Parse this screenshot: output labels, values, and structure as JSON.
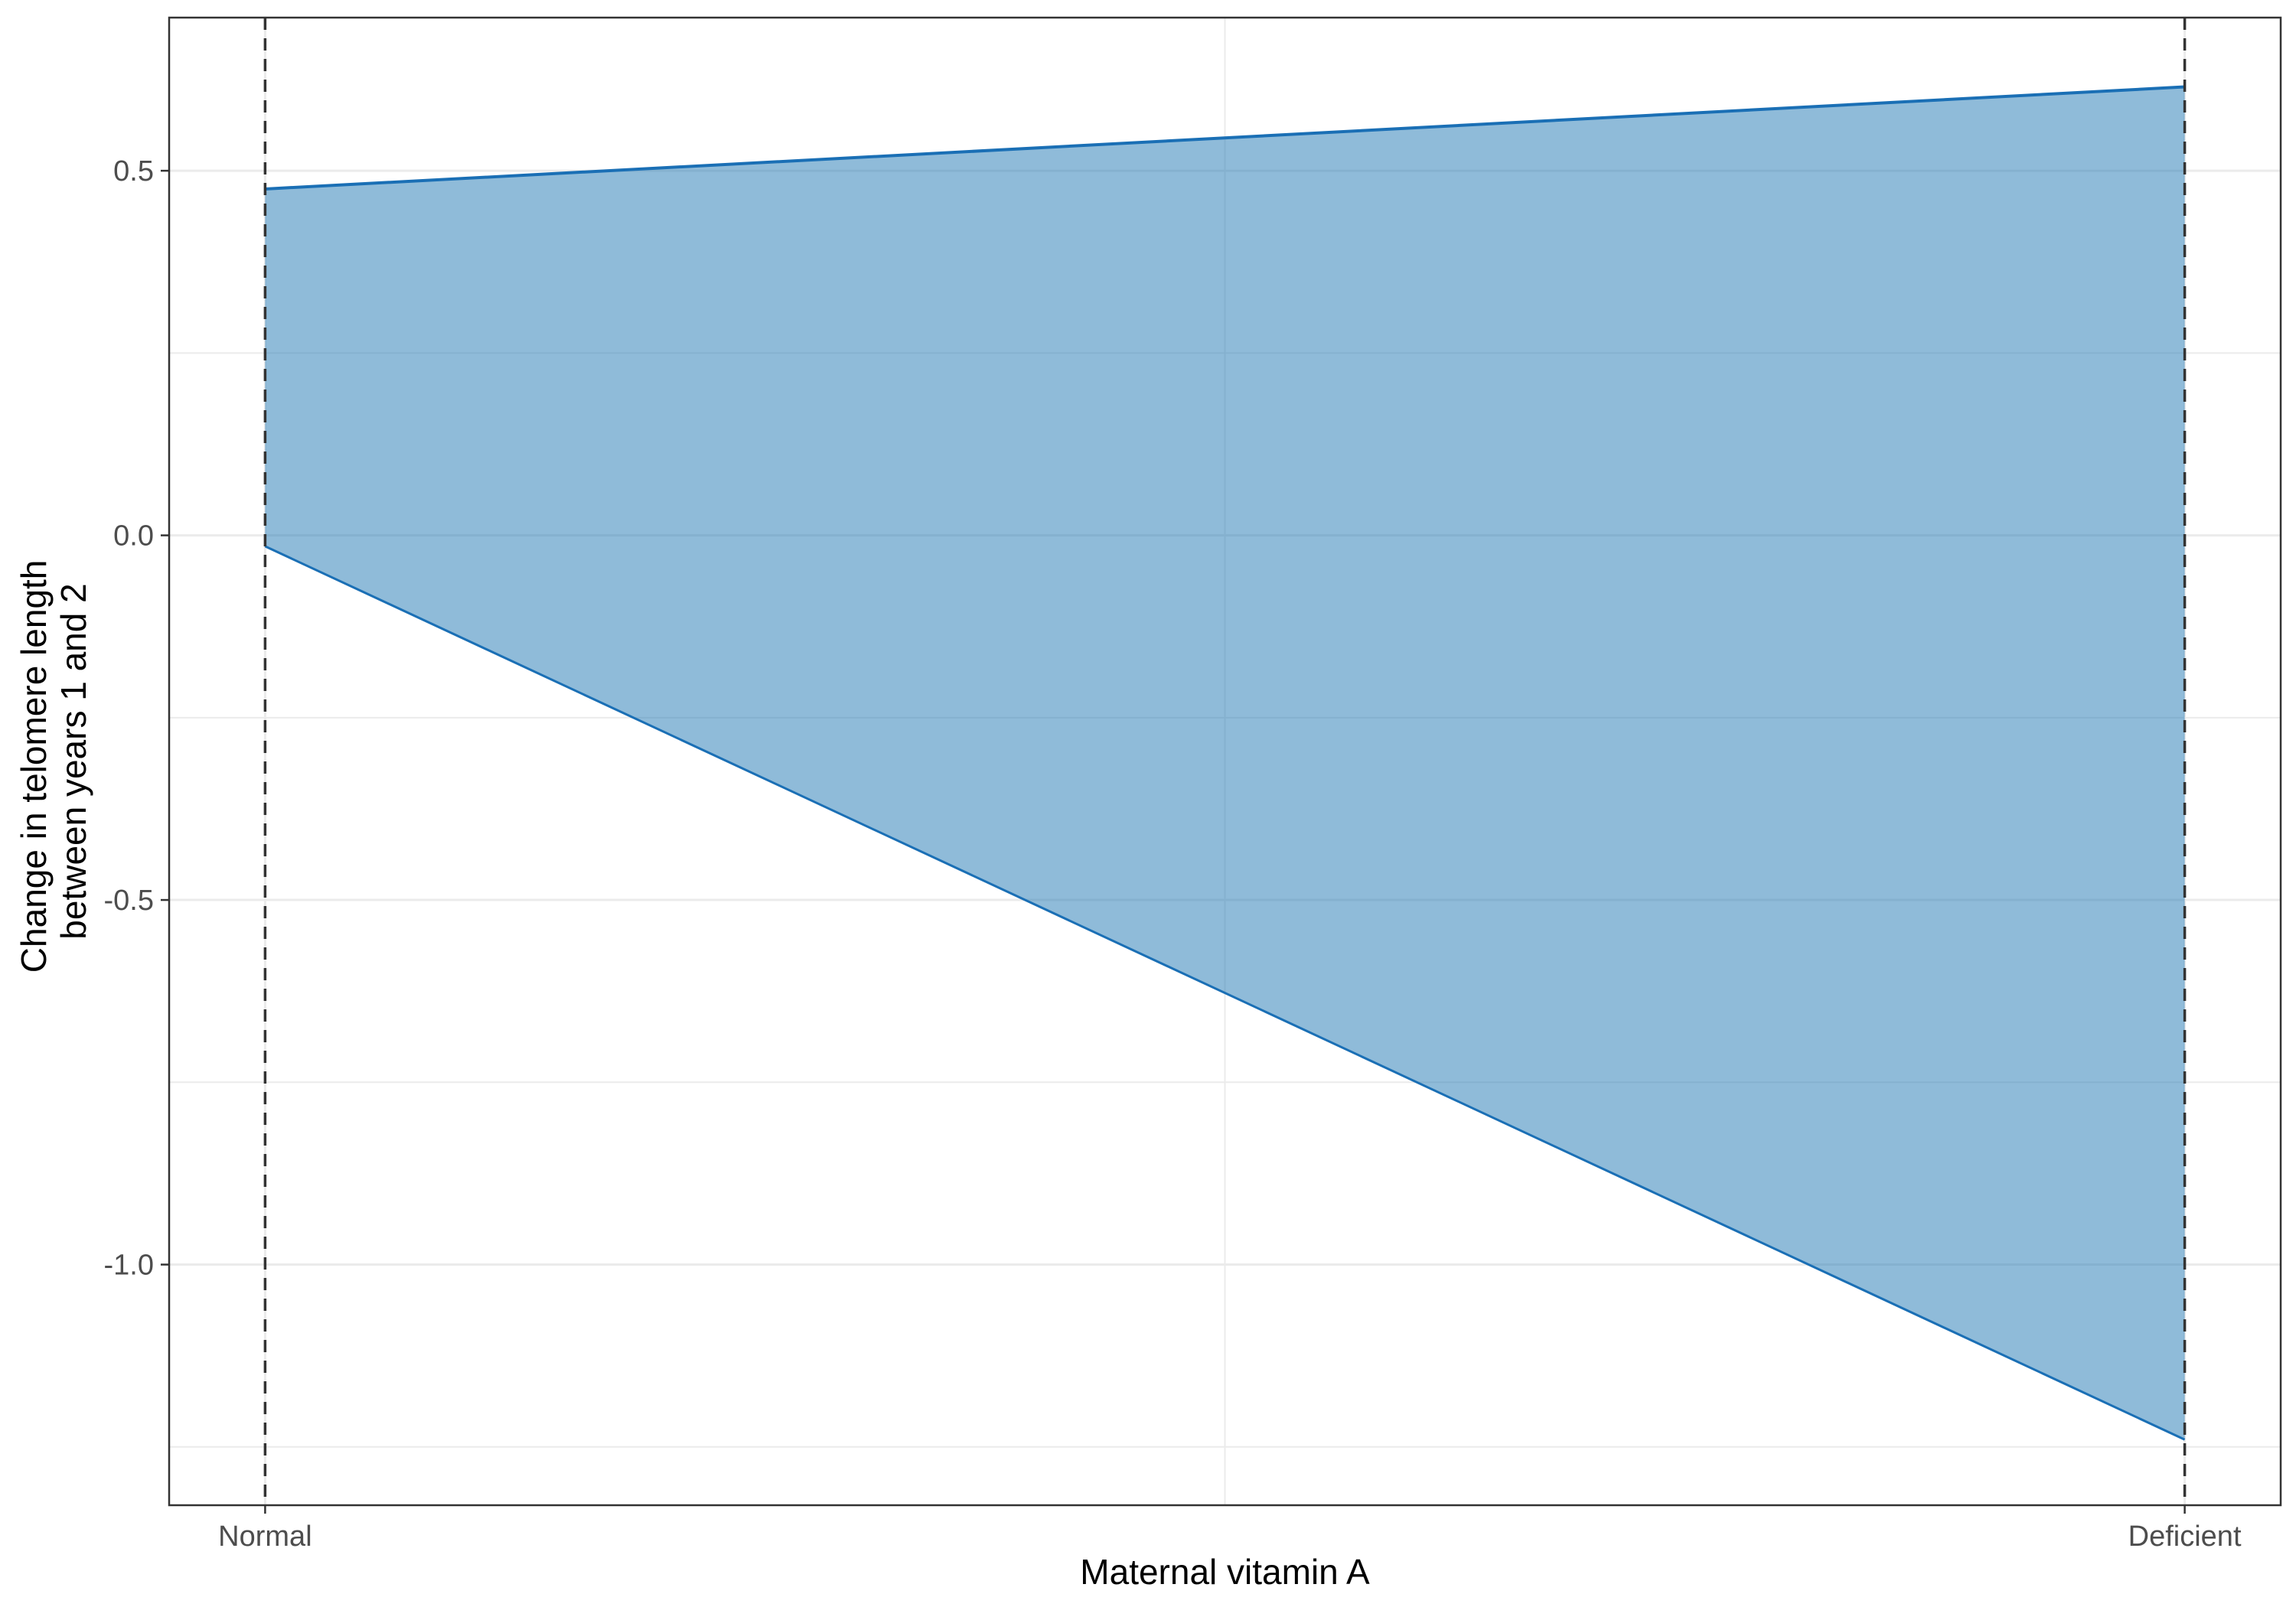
{
  "chart_data": {
    "type": "area",
    "xlabel": "Maternal vitamin A",
    "ylabel_lines": [
      "Change in telomere length",
      "between years 1 and 2"
    ],
    "categories": [
      "Normal",
      "Deficient"
    ],
    "x_range": [
      -0.05,
      1.05
    ],
    "ylim": [
      -1.33,
      0.71
    ],
    "y_ticks": [
      -1.0,
      -0.5,
      0.0,
      0.5
    ],
    "y_tick_labels": [
      "-1.0",
      "-0.5",
      "0.0",
      "0.5"
    ],
    "band": {
      "x": [
        0,
        1
      ],
      "upper": [
        0.475,
        0.615
      ],
      "lower": [
        -0.015,
        -1.24
      ]
    },
    "reference_lines_x": [
      0,
      1
    ],
    "grid": true,
    "colors": {
      "fill": "#1f77b4",
      "fill_opacity": 0.5,
      "line": "#1a6fb5",
      "reference_line": "#333333",
      "grid": "#ebebeb",
      "panel_border": "#333333"
    }
  }
}
